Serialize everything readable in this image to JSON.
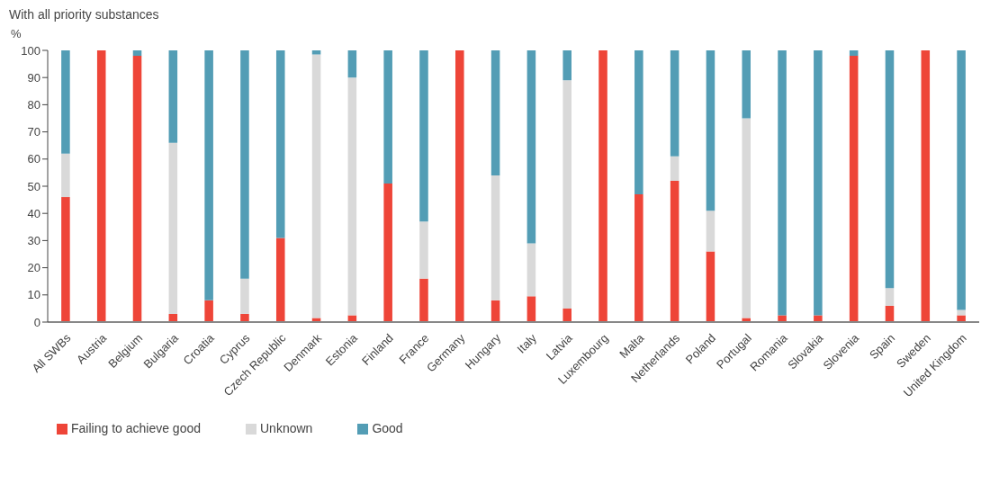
{
  "chart_data": {
    "type": "bar",
    "title": "With all priority substances",
    "ylabel": "%",
    "stacked": true,
    "categories": [
      "All SWBs",
      "Austria",
      "Belgium",
      "Bulgaria",
      "Croatia",
      "Cyprus",
      "Czech Republic",
      "Denmark",
      "Estonia",
      "Finland",
      "France",
      "Germany",
      "Hungary",
      "Italy",
      "Latvia",
      "Luxembourg",
      "Malta",
      "Netherlands",
      "Poland",
      "Portugal",
      "Romania",
      "Slovakia",
      "Slovenia",
      "Spain",
      "Sweden",
      "United Kingdom"
    ],
    "series": [
      {
        "name": "Failing to achieve good",
        "color": "#ee4538",
        "values": [
          46,
          100,
          98,
          3,
          8,
          3,
          31,
          1.5,
          2.5,
          51,
          16,
          100,
          8,
          9.5,
          5,
          100,
          47,
          52,
          26,
          1.5,
          2.5,
          2.5,
          98,
          6,
          100,
          2.5
        ]
      },
      {
        "name": "Unknown",
        "color": "#d9d9d9",
        "values": [
          16,
          0,
          0,
          63,
          0,
          13,
          0,
          97,
          87.5,
          0,
          21,
          0,
          46,
          19.5,
          84,
          0,
          0,
          9,
          15,
          73.5,
          0,
          0,
          0,
          6.5,
          0,
          2
        ]
      },
      {
        "name": "Good",
        "color": "#539db5",
        "values": [
          38,
          0,
          2,
          34,
          92,
          84,
          69,
          1.5,
          10,
          49,
          63,
          0,
          46,
          71,
          11,
          0,
          53,
          39,
          59,
          25,
          97.5,
          97.5,
          2,
          87.5,
          0,
          95.5
        ]
      }
    ],
    "ylim": [
      0,
      100
    ],
    "yticks": [
      0,
      10,
      20,
      30,
      40,
      50,
      60,
      70,
      80,
      90,
      100
    ],
    "grid": false,
    "legend": "bottom left"
  }
}
